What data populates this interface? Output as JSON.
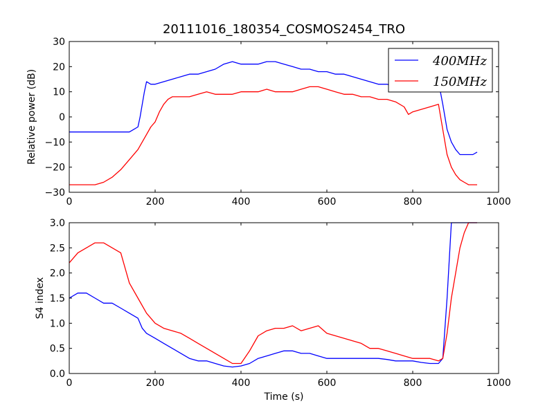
{
  "chart_data": [
    {
      "type": "line",
      "title": "20111016_180354_COSMOS2454_TRO",
      "xlabel": "",
      "ylabel": "Relative power (dB)",
      "xlim": [
        0,
        1000
      ],
      "ylim": [
        -30,
        30
      ],
      "xticks": [
        0,
        200,
        400,
        600,
        800,
        1000
      ],
      "yticks": [
        -30,
        -20,
        -10,
        0,
        10,
        20,
        30
      ],
      "grid": false,
      "legend": "top-right",
      "series": [
        {
          "name": "400MHz",
          "color": "#0000ff",
          "x": [
            0,
            20,
            40,
            60,
            80,
            100,
            120,
            140,
            150,
            160,
            165,
            170,
            175,
            180,
            190,
            200,
            220,
            240,
            260,
            280,
            300,
            320,
            340,
            360,
            380,
            400,
            420,
            440,
            460,
            480,
            500,
            520,
            540,
            560,
            580,
            600,
            620,
            640,
            660,
            680,
            700,
            720,
            740,
            760,
            780,
            800,
            820,
            840,
            860,
            870,
            880,
            890,
            900,
            910,
            920,
            930,
            940,
            950
          ],
          "y": [
            -6,
            -6,
            -6,
            -6,
            -6,
            -6,
            -6,
            -6,
            -5,
            -4,
            0,
            5,
            10,
            14,
            13,
            13,
            14,
            15,
            16,
            17,
            17,
            18,
            19,
            21,
            22,
            21,
            21,
            21,
            22,
            22,
            21,
            20,
            19,
            19,
            18,
            18,
            17,
            17,
            16,
            15,
            14,
            13,
            13,
            12,
            12,
            12,
            12,
            12,
            14,
            5,
            -5,
            -10,
            -13,
            -15,
            -15,
            -15,
            -15,
            -14
          ]
        },
        {
          "name": "150MHz",
          "color": "#ff0000",
          "x": [
            0,
            20,
            40,
            60,
            80,
            100,
            120,
            140,
            160,
            170,
            180,
            190,
            200,
            210,
            220,
            230,
            240,
            260,
            280,
            300,
            320,
            340,
            360,
            380,
            400,
            420,
            440,
            460,
            480,
            500,
            520,
            540,
            560,
            580,
            600,
            620,
            640,
            660,
            680,
            700,
            720,
            740,
            760,
            780,
            790,
            800,
            820,
            840,
            860,
            870,
            880,
            890,
            900,
            910,
            920,
            930,
            940,
            950
          ],
          "y": [
            -27,
            -27,
            -27,
            -27,
            -26,
            -24,
            -21,
            -17,
            -13,
            -10,
            -7,
            -4,
            -2,
            2,
            5,
            7,
            8,
            8,
            8,
            9,
            10,
            9,
            9,
            9,
            10,
            10,
            10,
            11,
            10,
            10,
            10,
            11,
            12,
            12,
            11,
            10,
            9,
            9,
            8,
            8,
            7,
            7,
            6,
            4,
            1,
            2,
            3,
            4,
            5,
            -5,
            -15,
            -20,
            -23,
            -25,
            -26,
            -27,
            -27,
            -27
          ]
        }
      ]
    },
    {
      "type": "line",
      "title": "",
      "xlabel": "Time (s)",
      "ylabel": "S4 index",
      "xlim": [
        0,
        1000
      ],
      "ylim": [
        0,
        3
      ],
      "xticks": [
        0,
        200,
        400,
        600,
        800,
        1000
      ],
      "yticks": [
        0,
        0.5,
        1.0,
        1.5,
        2.0,
        2.5,
        3.0
      ],
      "grid": false,
      "series": [
        {
          "name": "400MHz",
          "color": "#0000ff",
          "x": [
            0,
            20,
            40,
            60,
            80,
            100,
            120,
            140,
            160,
            170,
            180,
            200,
            220,
            240,
            260,
            280,
            300,
            320,
            340,
            360,
            380,
            400,
            420,
            440,
            460,
            480,
            500,
            520,
            540,
            560,
            580,
            600,
            620,
            640,
            660,
            680,
            700,
            720,
            740,
            760,
            780,
            800,
            820,
            840,
            860,
            870,
            880,
            890,
            900,
            910,
            920,
            930,
            940,
            950
          ],
          "y": [
            1.5,
            1.6,
            1.6,
            1.5,
            1.4,
            1.4,
            1.3,
            1.2,
            1.1,
            0.9,
            0.8,
            0.7,
            0.6,
            0.5,
            0.4,
            0.3,
            0.25,
            0.25,
            0.2,
            0.15,
            0.13,
            0.15,
            0.2,
            0.3,
            0.35,
            0.4,
            0.45,
            0.45,
            0.4,
            0.4,
            0.35,
            0.3,
            0.3,
            0.3,
            0.3,
            0.3,
            0.3,
            0.3,
            0.28,
            0.25,
            0.25,
            0.25,
            0.22,
            0.2,
            0.2,
            0.3,
            1.5,
            3.0,
            3.0,
            3.0,
            3.0,
            3.0,
            3.0,
            3.0
          ]
        },
        {
          "name": "150MHz",
          "color": "#ff0000",
          "x": [
            0,
            20,
            40,
            60,
            80,
            100,
            120,
            140,
            160,
            180,
            200,
            220,
            240,
            260,
            280,
            300,
            320,
            340,
            360,
            380,
            400,
            420,
            440,
            460,
            480,
            500,
            520,
            540,
            560,
            580,
            600,
            620,
            640,
            660,
            680,
            700,
            720,
            740,
            760,
            780,
            800,
            820,
            840,
            860,
            870,
            880,
            890,
            900,
            910,
            920,
            930,
            940,
            950
          ],
          "y": [
            2.2,
            2.4,
            2.5,
            2.6,
            2.6,
            2.5,
            2.4,
            1.8,
            1.5,
            1.2,
            1.0,
            0.9,
            0.85,
            0.8,
            0.7,
            0.6,
            0.5,
            0.4,
            0.3,
            0.2,
            0.2,
            0.45,
            0.75,
            0.85,
            0.9,
            0.9,
            0.95,
            0.85,
            0.9,
            0.95,
            0.8,
            0.75,
            0.7,
            0.65,
            0.6,
            0.5,
            0.5,
            0.45,
            0.4,
            0.35,
            0.3,
            0.3,
            0.3,
            0.25,
            0.3,
            0.8,
            1.5,
            2.0,
            2.5,
            2.8,
            3.0,
            3.0,
            3.0
          ]
        }
      ]
    }
  ]
}
